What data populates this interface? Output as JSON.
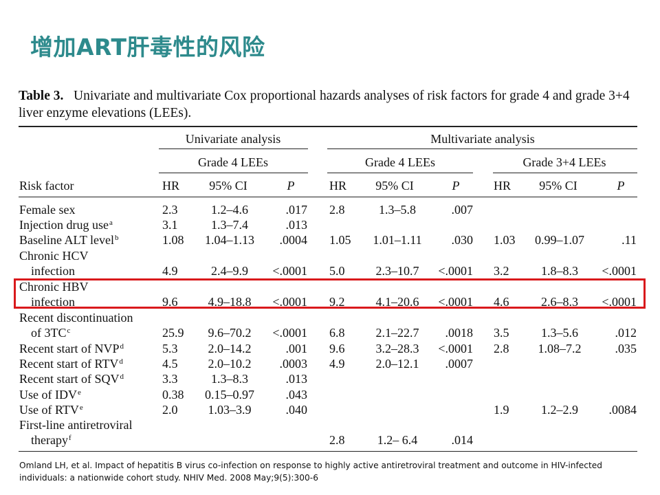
{
  "slide_title": "增加ART肝毒性的风险",
  "table": {
    "label": "Table 3.",
    "caption": "Univariate and multivariate Cox proportional hazards analyses of risk factors for grade 4 and grade 3+4 liver enzyme elevations (LEEs).",
    "header": {
      "univariate": "Univariate analysis",
      "multivariate": "Multivariate analysis",
      "grade4_uni": "Grade 4 LEEs",
      "grade4_multi": "Grade 4 LEEs",
      "grade34_multi": "Grade 3+4 LEEs",
      "risk_factor": "Risk factor",
      "hr": "HR",
      "ci": "95% CI",
      "p": "P"
    },
    "rows": [
      {
        "f1": "Female sex",
        "sup": "",
        "f2": "",
        "u": [
          "2.3",
          "1.2–4.6",
          ".017"
        ],
        "m4": [
          "2.8",
          "1.3–5.8",
          ".007"
        ],
        "m34": [
          "",
          "",
          ""
        ]
      },
      {
        "f1": "Injection drug use",
        "sup": "a",
        "f2": "",
        "u": [
          "3.1",
          "1.3–7.4",
          ".013"
        ],
        "m4": [
          "",
          "",
          ""
        ],
        "m34": [
          "",
          "",
          ""
        ]
      },
      {
        "f1": "Baseline ALT level",
        "sup": "b",
        "f2": "",
        "u": [
          "1.08",
          "1.04–1.13",
          ".0004"
        ],
        "m4": [
          "1.05",
          "1.01–1.11",
          ".030"
        ],
        "m34": [
          "1.03",
          "0.99–1.07",
          ".11"
        ]
      },
      {
        "f1": "Chronic HCV",
        "sup": "",
        "f2": "infection",
        "u": [
          "4.9",
          "2.4–9.9",
          "<.0001"
        ],
        "m4": [
          "5.0",
          "2.3–10.7",
          "<.0001"
        ],
        "m34": [
          "3.2",
          "1.8–8.3",
          "<.0001"
        ]
      },
      {
        "f1": "Chronic HBV",
        "sup": "",
        "f2": "infection",
        "u": [
          "9.6",
          "4.9–18.8",
          "<.0001"
        ],
        "m4": [
          "9.2",
          "4.1–20.6",
          "<.0001"
        ],
        "m34": [
          "4.6",
          "2.6–8.3",
          "<.0001"
        ]
      },
      {
        "f1": "Recent discontinuation",
        "sup": "",
        "f2": "of 3TC",
        "sup2": "c",
        "u": [
          "25.9",
          "9.6–70.2",
          "<.0001"
        ],
        "m4": [
          "6.8",
          "2.1–22.7",
          ".0018"
        ],
        "m34": [
          "3.5",
          "1.3–5.6",
          ".012"
        ]
      },
      {
        "f1": "Recent start of NVP",
        "sup": "d",
        "f2": "",
        "u": [
          "5.3",
          "2.0–14.2",
          ".001"
        ],
        "m4": [
          "9.6",
          "3.2–28.3",
          "<.0001"
        ],
        "m34": [
          "2.8",
          "1.08–7.2",
          ".035"
        ]
      },
      {
        "f1": "Recent start of RTV",
        "sup": "d",
        "f2": "",
        "u": [
          "4.5",
          "2.0–10.2",
          ".0003"
        ],
        "m4": [
          "4.9",
          "2.0–12.1",
          ".0007"
        ],
        "m34": [
          "",
          "",
          ""
        ]
      },
      {
        "f1": "Recent start of SQV",
        "sup": "d",
        "f2": "",
        "u": [
          "3.3",
          "1.3–8.3",
          ".013"
        ],
        "m4": [
          "",
          "",
          ""
        ],
        "m34": [
          "",
          "",
          ""
        ]
      },
      {
        "f1": "Use of IDV",
        "sup": "e",
        "f2": "",
        "u": [
          "0.38",
          "0.15–0.97",
          ".043"
        ],
        "m4": [
          "",
          "",
          ""
        ],
        "m34": [
          "",
          "",
          ""
        ]
      },
      {
        "f1": "Use of RTV",
        "sup": "e",
        "f2": "",
        "u": [
          "2.0",
          "1.03–3.9",
          ".040"
        ],
        "m4": [
          "",
          "",
          ""
        ],
        "m34": [
          "1.9",
          "1.2–2.9",
          ".0084"
        ]
      },
      {
        "f1": "First-line antiretroviral",
        "sup": "",
        "f2": "therapy",
        "sup2": "f",
        "u": [
          "",
          "",
          ""
        ],
        "m4": [
          "2.8",
          "1.2– 6.4",
          ".014"
        ],
        "m34": [
          "",
          "",
          ""
        ]
      }
    ]
  },
  "reference": "Omland LH, et al. Impact of hepatitis B virus co-infection on response to highly active antiretroviral treatment and outcome in HIV-infected individuals: a nationwide cohort study. NHIV Med. 2008 May;9(5):300-6",
  "colors": {
    "title": "#2d8a8c",
    "highlight": "#d9191c"
  }
}
